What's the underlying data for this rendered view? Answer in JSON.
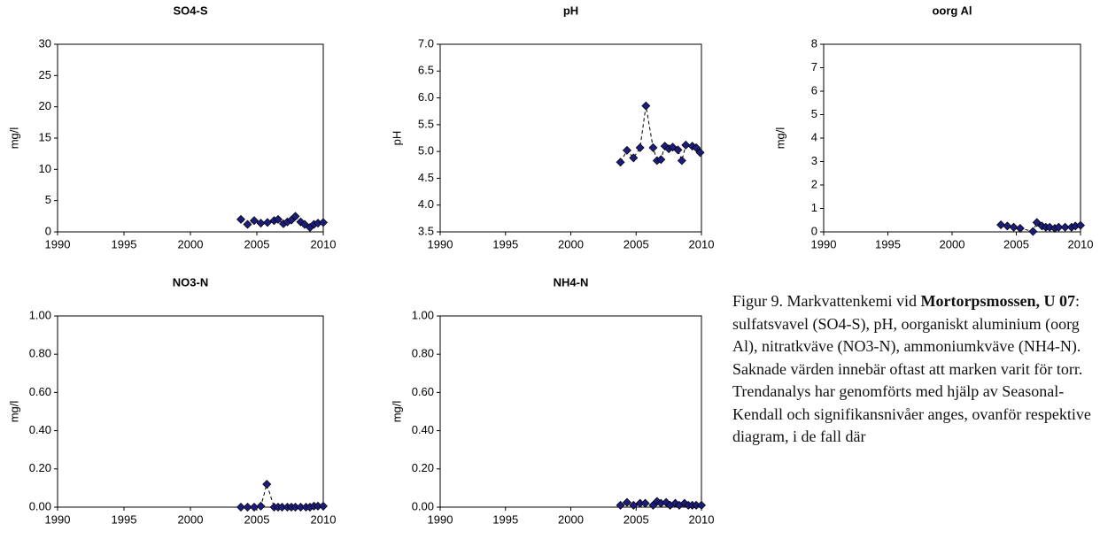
{
  "chart_data": [
    {
      "type": "line",
      "title": "SO4-S",
      "ylabel": "mg/l",
      "color": "#1c1c7c",
      "x": [
        2003.8,
        2004.3,
        2004.8,
        2005.3,
        2005.8,
        2006.3,
        2006.6,
        2007.0,
        2007.3,
        2007.6,
        2007.9,
        2008.3,
        2008.6,
        2009.0,
        2009.3,
        2009.6,
        2010.0
      ],
      "values": [
        2.0,
        1.2,
        1.8,
        1.4,
        1.5,
        1.8,
        2.0,
        1.3,
        1.6,
        1.9,
        2.5,
        1.6,
        1.2,
        0.7,
        1.2,
        1.4,
        1.5
      ],
      "xlim": [
        1990,
        2010
      ],
      "xticks": [
        1990,
        1995,
        2000,
        2005,
        2010
      ],
      "ylim": [
        0,
        30
      ],
      "yticks": [
        0,
        5,
        10,
        15,
        20,
        25,
        30
      ]
    },
    {
      "type": "line",
      "title": "pH",
      "ylabel": "pH",
      "color": "#1c1c7c",
      "x": [
        2003.8,
        2004.3,
        2004.8,
        2005.3,
        2005.75,
        2006.3,
        2006.6,
        2006.9,
        2007.2,
        2007.5,
        2007.8,
        2008.2,
        2008.5,
        2008.8,
        2009.3,
        2009.6,
        2009.9
      ],
      "values": [
        4.8,
        5.02,
        4.88,
        5.07,
        5.85,
        5.07,
        4.83,
        4.85,
        5.1,
        5.05,
        5.08,
        5.03,
        4.83,
        5.12,
        5.1,
        5.07,
        4.98
      ],
      "xlim": [
        1990,
        2010
      ],
      "xticks": [
        1990,
        1995,
        2000,
        2005,
        2010
      ],
      "ylim": [
        3.5,
        7.0
      ],
      "yticks": [
        3.5,
        {
          "value": 4,
          "label": "4.0"
        },
        4.5,
        {
          "value": 5,
          "label": "5.0"
        },
        5.5,
        {
          "value": 6,
          "label": "6.0"
        },
        6.5,
        {
          "value": 7,
          "label": "7.0"
        }
      ]
    },
    {
      "type": "line",
      "title": "oorg Al",
      "ylabel": "mg/l",
      "color": "#1c1c7c",
      "x": [
        2003.8,
        2004.3,
        2004.8,
        2005.3,
        2006.3,
        2006.6,
        2007.0,
        2007.3,
        2007.6,
        2008.0,
        2008.3,
        2008.8,
        2009.3,
        2009.6,
        2010.0
      ],
      "values": [
        0.3,
        0.25,
        0.2,
        0.15,
        0.02,
        0.4,
        0.25,
        0.2,
        0.2,
        0.15,
        0.2,
        0.2,
        0.2,
        0.25,
        0.28
      ],
      "xlim": [
        1990,
        2010
      ],
      "xticks": [
        1990,
        1995,
        2000,
        2005,
        2010
      ],
      "ylim": [
        0,
        8
      ],
      "yticks": [
        0,
        1,
        2,
        3,
        4,
        5,
        6,
        7,
        8
      ]
    },
    {
      "type": "line",
      "title": "NO3-N",
      "ylabel": "mg/l",
      "color": "#1c1c7c",
      "x": [
        2003.8,
        2004.3,
        2004.8,
        2005.3,
        2005.75,
        2006.3,
        2006.6,
        2006.9,
        2007.3,
        2007.6,
        2007.9,
        2008.3,
        2008.7,
        2009.0,
        2009.3,
        2009.6,
        2010.0
      ],
      "values": [
        0,
        0,
        0,
        0.005,
        0.12,
        0,
        0,
        0,
        0,
        0,
        0,
        0,
        0,
        0,
        0.005,
        0.005,
        0.005
      ],
      "xlim": [
        1990,
        2010
      ],
      "xticks": [
        1990,
        1995,
        2000,
        2005,
        2010
      ],
      "ylim": [
        0,
        1
      ],
      "yticks": [
        {
          "value": 0,
          "label": "0.00"
        },
        {
          "value": 0.2,
          "label": "0.20"
        },
        {
          "value": 0.4,
          "label": "0.40"
        },
        {
          "value": 0.6,
          "label": "0.60"
        },
        {
          "value": 0.8,
          "label": "0.80"
        },
        {
          "value": 1,
          "label": "1.00"
        }
      ]
    },
    {
      "type": "line",
      "title": "NH4-N",
      "ylabel": "mg/l",
      "color": "#1c1c7c",
      "x": [
        2003.8,
        2004.3,
        2004.8,
        2005.3,
        2005.7,
        2006.3,
        2006.6,
        2006.9,
        2007.3,
        2007.6,
        2008.0,
        2008.3,
        2008.7,
        2009.0,
        2009.3,
        2009.6,
        2010.0
      ],
      "values": [
        0.01,
        0.025,
        0.01,
        0.02,
        0.02,
        0.01,
        0.03,
        0.02,
        0.025,
        0.01,
        0.02,
        0.01,
        0.02,
        0.01,
        0.01,
        0.01,
        0.01
      ],
      "xlim": [
        1990,
        2010
      ],
      "xticks": [
        1990,
        1995,
        2000,
        2005,
        2010
      ],
      "ylim": [
        0,
        1
      ],
      "yticks": [
        {
          "value": 0,
          "label": "0.00"
        },
        {
          "value": 0.2,
          "label": "0.20"
        },
        {
          "value": 0.4,
          "label": "0.40"
        },
        {
          "value": 0.6,
          "label": "0.60"
        },
        {
          "value": 0.8,
          "label": "0.80"
        },
        {
          "value": 1,
          "label": "1.00"
        }
      ]
    }
  ],
  "caption": [
    "Figur 9. Markvattenkemi vid ",
    "Mortorpsmossen, U 07",
    ": sulfatsvavel (SO4-S), pH, oorganiskt aluminium (oorg Al), nitratkväve (NO3-N), ammoniumkväve (NH4-N). Saknade värden innebär oftast att marken varit för torr. Trendanalys har genomförts med hjälp av Seasonal-Kendall och signifikansnivåer anges, ovanför respektive diagram, i de fall där"
  ]
}
